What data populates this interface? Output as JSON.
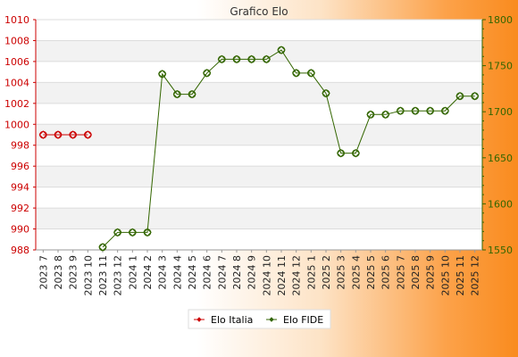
{
  "chart_data": {
    "type": "line",
    "title": "Grafico Elo",
    "xlabel": "",
    "ylabel": "",
    "categories": [
      "2023 7",
      "2023 8",
      "2023 9",
      "2023 10",
      "2023 11",
      "2023 12",
      "2024 1",
      "2024 2",
      "2024 3",
      "2024 4",
      "2024 5",
      "2024 6",
      "2024 7",
      "2024 8",
      "2024 9",
      "2024 10",
      "2024 11",
      "2024 12",
      "2025 1",
      "2025 2",
      "2025 3",
      "2025 4",
      "2025 5",
      "2025 6",
      "2025 7",
      "2025 8",
      "2025 9",
      "2025 10",
      "2025 11",
      "2025 12"
    ],
    "ylim_left": [
      988,
      1010
    ],
    "yticks_left": [
      988,
      990,
      992,
      994,
      996,
      998,
      1000,
      1002,
      1004,
      1006,
      1008,
      1010
    ],
    "ylim_right": [
      1550,
      1800
    ],
    "yticks_right": [
      1550,
      1600,
      1650,
      1700,
      1750,
      1800
    ],
    "grid": true,
    "legend_position": "bottom",
    "series": [
      {
        "name": "Elo Italia",
        "axis": "left",
        "color": "#cc0000",
        "values": [
          999,
          999,
          999,
          999,
          null,
          null,
          null,
          null,
          null,
          null,
          null,
          null,
          null,
          null,
          null,
          null,
          null,
          null,
          null,
          null,
          null,
          null,
          null,
          null,
          null,
          null,
          null,
          null,
          null,
          null
        ]
      },
      {
        "name": "Elo FIDE",
        "axis": "right",
        "color": "#336600",
        "values": [
          null,
          null,
          null,
          null,
          1553,
          1569,
          1569,
          1569,
          1741,
          1719,
          1719,
          1742,
          1757,
          1757,
          1757,
          1757,
          1767,
          1742,
          1742,
          1720,
          1655,
          1655,
          1697,
          1697,
          1701,
          1701,
          1701,
          1701,
          1717,
          1717
        ]
      }
    ]
  }
}
